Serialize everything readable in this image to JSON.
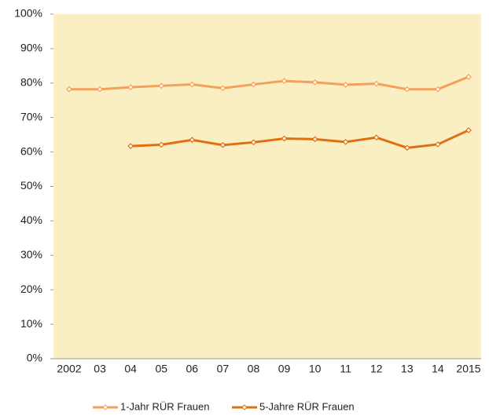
{
  "chart_data": {
    "type": "line",
    "categories": [
      "2002",
      "03",
      "04",
      "05",
      "06",
      "07",
      "08",
      "09",
      "10",
      "11",
      "12",
      "13",
      "14",
      "2015"
    ],
    "series": [
      {
        "name": "1-Jahr RÜR Frauen",
        "color": "#f5a05a",
        "values": [
          78.2,
          78.2,
          78.8,
          79.2,
          79.6,
          78.5,
          79.6,
          80.6,
          80.2,
          79.5,
          79.8,
          78.2,
          78.2,
          81.8
        ]
      },
      {
        "name": "5-Jahre RÜR Frauen",
        "color": "#e0700f",
        "values": [
          null,
          null,
          61.7,
          62.1,
          63.5,
          62.0,
          62.8,
          63.9,
          63.7,
          62.9,
          64.2,
          61.2,
          62.2,
          66.3
        ]
      }
    ],
    "ylim": [
      0,
      100
    ],
    "yticks": [
      {
        "value": 0,
        "label": "0%"
      },
      {
        "value": 10,
        "label": "10%"
      },
      {
        "value": 20,
        "label": "20%"
      },
      {
        "value": 30,
        "label": "30%"
      },
      {
        "value": 40,
        "label": "40%"
      },
      {
        "value": 50,
        "label": "50%"
      },
      {
        "value": 60,
        "label": "60%"
      },
      {
        "value": 70,
        "label": "70%"
      },
      {
        "value": 80,
        "label": "80%"
      },
      {
        "value": 90,
        "label": "90%"
      },
      {
        "value": 100,
        "label": "100%"
      }
    ],
    "legend": "bottom"
  }
}
